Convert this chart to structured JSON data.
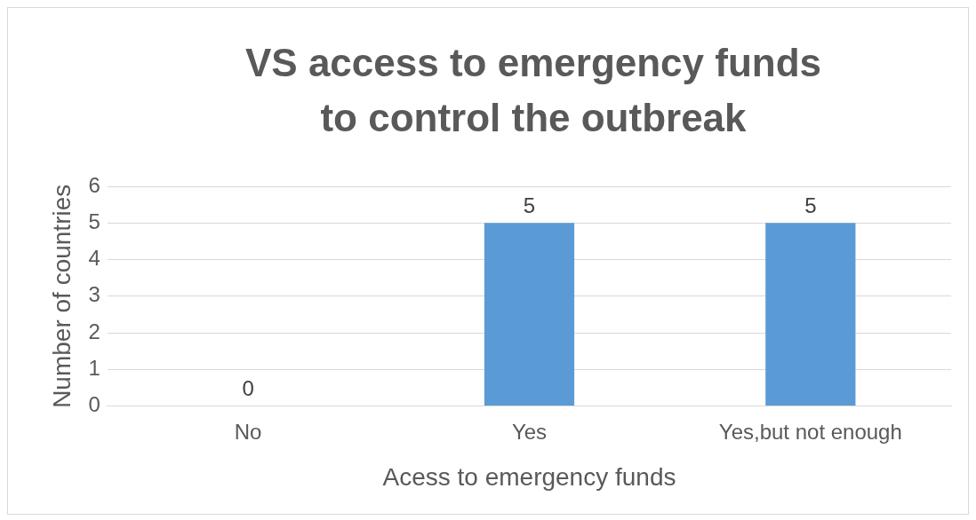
{
  "chart_data": {
    "type": "bar",
    "title": "VS access to emergency funds to control the outbreak",
    "xlabel": "Acess to emergency funds",
    "ylabel": "Number of countries",
    "categories": [
      "No",
      "Yes",
      "Yes,but not enough"
    ],
    "series": [
      {
        "color": "#5b9bd5",
        "values": [
          0,
          5,
          5
        ]
      }
    ],
    "ylim": [
      0,
      6
    ],
    "yticks": [
      0,
      1,
      2,
      3,
      4,
      5,
      6
    ],
    "grid": "y",
    "data_labels": true
  }
}
